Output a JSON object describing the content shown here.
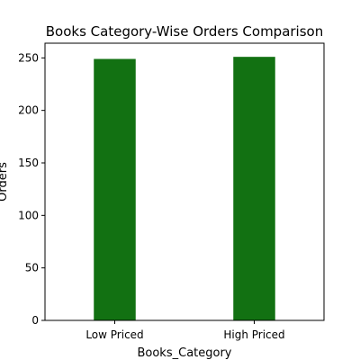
{
  "chart_data": {
    "type": "bar",
    "title": "Books Category-Wise Orders Comparison",
    "xlabel": "Books_Category",
    "ylabel": "Orders",
    "categories": [
      "Low Priced",
      "High Priced"
    ],
    "values": [
      249,
      251
    ],
    "ylim": [
      0,
      264
    ],
    "yticks": [
      0,
      50,
      100,
      150,
      200,
      250
    ],
    "bar_color": "#127112",
    "grid": false,
    "legend": "none"
  }
}
